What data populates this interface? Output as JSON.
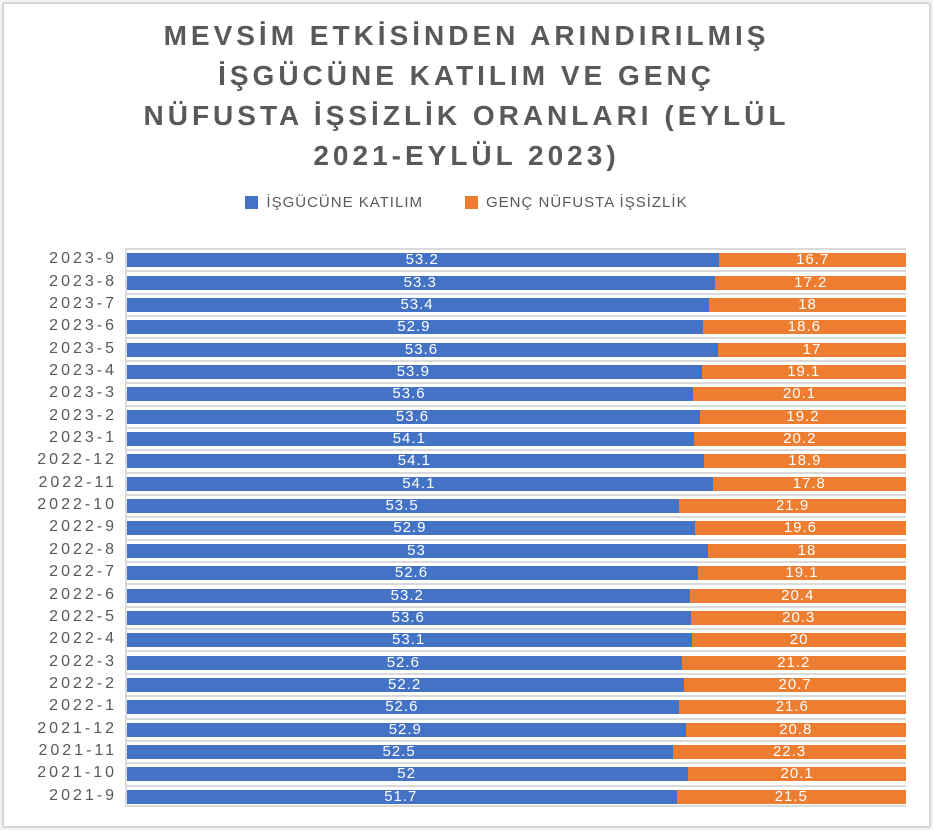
{
  "title": {
    "full": "MEVSİM ETKİSİNDEN ARINDIRILMIŞ İŞGÜCÜNE KATILIM VE GENÇ NÜFUSTA İŞSİZLİK ORANLARI (EYLÜL 2021-EYLÜL 2023)",
    "lines": [
      "MEVSİM ETKİSİNDEN ARINDIRILMIŞ",
      "İŞGÜCÜNE KATILIM VE GENÇ",
      "NÜFUSTA İŞSİZLİK ORANLARI (EYLÜL",
      "2021-EYLÜL 2023)"
    ]
  },
  "legend": [
    {
      "label": "İŞGÜCÜNE KATILIM",
      "color": "#4472C4"
    },
    {
      "label": "GENÇ NÜFUSTA İŞSİZLİK",
      "color": "#ED7D31"
    }
  ],
  "colors": {
    "participation_blue": "#4472C4",
    "youth_unemployment_orange": "#ED7D31",
    "title_gray": "#595959",
    "gridline_gray": "#DADADA",
    "value_label_white": "#FFFFFF"
  },
  "chart_data": {
    "type": "bar",
    "subtype": "100-percent-stacked-horizontal",
    "title": "MEVSİM ETKİSİNDEN ARINDIRILMIŞ İŞGÜCÜNE KATILIM VE GENÇ NÜFUSTA İŞSİZLİK ORANLARI (EYLÜL 2021-EYLÜL 2023)",
    "legend_position": "top",
    "grid": true,
    "value_labels": true,
    "xlabel": "",
    "ylabel": "",
    "categories": [
      "2023-9",
      "2023-8",
      "2023-7",
      "2023-6",
      "2023-5",
      "2023-4",
      "2023-3",
      "2023-2",
      "2023-1",
      "2022-12",
      "2022-11",
      "2022-10",
      "2022-9",
      "2022-8",
      "2022-7",
      "2022-6",
      "2022-5",
      "2022-4",
      "2022-3",
      "2022-2",
      "2022-1",
      "2021-12",
      "2021-11",
      "2021-10",
      "2021-9"
    ],
    "series": [
      {
        "name": "İŞGÜCÜNE KATILIM",
        "color": "#4472C4",
        "values": [
          53.2,
          53.3,
          53.4,
          52.9,
          53.6,
          53.9,
          53.6,
          53.6,
          54.1,
          54.1,
          54.1,
          53.5,
          52.9,
          53,
          52.6,
          53.2,
          53.6,
          53.1,
          52.6,
          52.2,
          52.6,
          52.9,
          52.5,
          52,
          51.7
        ]
      },
      {
        "name": "GENÇ NÜFUSTA İŞSİZLİK",
        "color": "#ED7D31",
        "values": [
          16.7,
          17.2,
          18,
          18.6,
          17,
          19.1,
          20.1,
          19.2,
          20.2,
          18.9,
          17.8,
          21.9,
          19.6,
          18,
          19.1,
          20.4,
          20.3,
          20,
          21.2,
          20.7,
          21.6,
          20.8,
          22.3,
          20.1,
          21.5
        ]
      }
    ]
  }
}
